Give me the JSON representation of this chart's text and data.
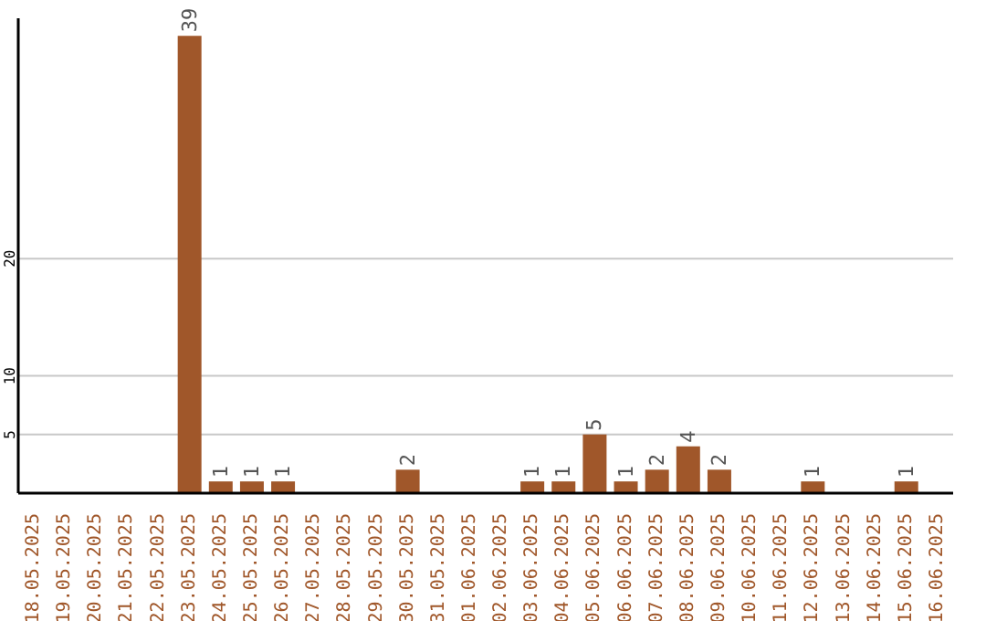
{
  "chart_data": {
    "type": "bar",
    "categories": [
      "18.05.2025",
      "19.05.2025",
      "20.05.2025",
      "21.05.2025",
      "22.05.2025",
      "23.05.2025",
      "24.05.2025",
      "25.05.2025",
      "26.05.2025",
      "27.05.2025",
      "28.05.2025",
      "29.05.2025",
      "30.05.2025",
      "31.05.2025",
      "01.06.2025",
      "02.06.2025",
      "03.06.2025",
      "04.06.2025",
      "05.06.2025",
      "06.06.2025",
      "07.06.2025",
      "08.06.2025",
      "09.06.2025",
      "10.06.2025",
      "11.06.2025",
      "12.06.2025",
      "13.06.2025",
      "14.06.2025",
      "15.06.2025",
      "16.06.2025"
    ],
    "values": [
      null,
      null,
      null,
      null,
      null,
      39,
      1,
      1,
      1,
      null,
      null,
      null,
      2,
      null,
      null,
      null,
      1,
      1,
      5,
      1,
      2,
      4,
      2,
      null,
      null,
      1,
      null,
      null,
      1,
      null
    ],
    "color": "#a0572a",
    "ylim": [
      0,
      40.5
    ],
    "yticks": [
      5,
      10,
      20
    ],
    "grid": "y",
    "data_labels": true
  }
}
